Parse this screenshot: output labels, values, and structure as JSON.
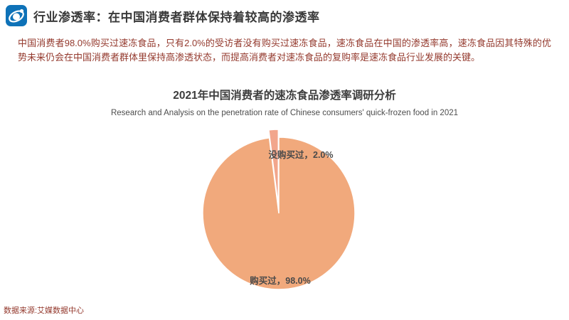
{
  "header": {
    "title": "行业渗透率：在中国消费者群体保持着较高的渗透率",
    "logo_color": "#0e72b8"
  },
  "summary": {
    "text": "中国消费者98.0%购买过速冻食品，只有2.0%的受访者没有购买过速冻食品，速冻食品在中国的渗透率高，速冻食品因其特殊的优势未来仍会在中国消费者群体里保持高渗透状态，而提高消费者对速冻食品的复购率是速冻食品行业发展的关键。",
    "text_color": "#943a2e"
  },
  "chart_data": {
    "type": "pie",
    "title": "2021年中国消费者的速冻食品渗透率调研分析",
    "subtitle": "Research and Analysis on the penetration rate of Chinese consumers' quick-frozen food in 2021",
    "legend_position": "none",
    "label_color": "#4a4a4a",
    "start_angle_deg": -90,
    "slices": [
      {
        "label": "购买过",
        "value": 98.0,
        "display": "购买过，98.0%",
        "color": "#f1a97c",
        "exploded": false
      },
      {
        "label": "没购买过",
        "value": 2.0,
        "display": "没购买过，2.0%",
        "color": "#f2a68c",
        "exploded": true
      }
    ]
  },
  "footer": {
    "source": "数据来源:艾媒数据中心"
  }
}
